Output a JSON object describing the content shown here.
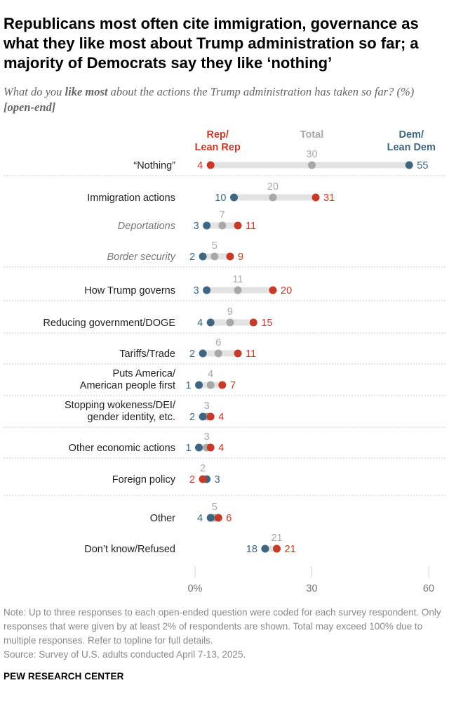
{
  "title": "Republicans most often cite immigration, governance as what they like most about Trump administration so far; a majority of Democrats say they like ‘nothing’",
  "subtitle": {
    "part1": "What do you ",
    "emphasis": "like most",
    "part2": " about the actions the Trump administration has taken so far? (%) ",
    "tag": "[open-end]"
  },
  "legend": {
    "rep_line1": "Rep/",
    "rep_line2": "Lean Rep",
    "total": "Total",
    "dem_line1": "Dem/",
    "dem_line2": "Lean Dem"
  },
  "colors": {
    "rep": "#c53a29",
    "dem": "#3f6680",
    "total": "#a8a8a8",
    "bar": "#e3e3e3",
    "divider": "#c9c9c9",
    "label": "#222222",
    "sublabel": "#777777"
  },
  "chart_data": {
    "type": "dot",
    "title": "What do you like most about the actions the Trump administration has taken so far? (%)",
    "series": [
      {
        "name": "Rep/Lean Rep",
        "key": "rep"
      },
      {
        "name": "Total",
        "key": "total"
      },
      {
        "name": "Dem/Lean Dem",
        "key": "dem"
      }
    ],
    "categories": [
      {
        "label": [
          "“Nothing”"
        ],
        "italic": false,
        "rep": 4,
        "total": 30,
        "dem": 55
      },
      {
        "label": [
          "Immigration actions"
        ],
        "italic": false,
        "rep": 31,
        "total": 20,
        "dem": 10
      },
      {
        "label": [
          "Deportations"
        ],
        "italic": true,
        "rep": 11,
        "total": 7,
        "dem": 3
      },
      {
        "label": [
          "Border security"
        ],
        "italic": true,
        "rep": 9,
        "total": 5,
        "dem": 2
      },
      {
        "label": [
          "How Trump governs"
        ],
        "italic": false,
        "rep": 20,
        "total": 11,
        "dem": 3
      },
      {
        "label": [
          "Reducing government/DOGE"
        ],
        "italic": false,
        "rep": 15,
        "total": 9,
        "dem": 4
      },
      {
        "label": [
          "Tariffs/Trade"
        ],
        "italic": false,
        "rep": 11,
        "total": 6,
        "dem": 2
      },
      {
        "label": [
          "Puts America/",
          "American people first"
        ],
        "italic": false,
        "rep": 7,
        "total": 4,
        "dem": 1
      },
      {
        "label": [
          "Stopping wokeness/DEI/",
          "gender identity, etc."
        ],
        "italic": false,
        "rep": 4,
        "total": 3,
        "dem": 2
      },
      {
        "label": [
          "Other economic actions"
        ],
        "italic": false,
        "rep": 4,
        "total": 3,
        "dem": 1
      },
      {
        "label": [
          "Foreign policy"
        ],
        "italic": false,
        "rep": 2,
        "total": 2,
        "dem": 3
      },
      {
        "label": [
          "Other"
        ],
        "italic": false,
        "rep": 6,
        "total": 5,
        "dem": 4
      },
      {
        "label": [
          "Don’t know/Refused"
        ],
        "italic": false,
        "rep": 21,
        "total": 21,
        "dem": 18
      }
    ],
    "x_ticks": [
      "0%",
      "30",
      "60"
    ],
    "tick_values": [
      0,
      30,
      60
    ],
    "xlim": [
      0,
      60
    ]
  },
  "note": "Note: Up to three responses to each open-ended question were coded for each survey respondent. Only responses that were given by at least 2% of respondents are shown. Total may exceed 100% due to multiple responses. Refer to topline for full details.",
  "source": "Source: Survey of U.S. adults conducted April 7-13, 2025.",
  "brand": "PEW RESEARCH CENTER"
}
